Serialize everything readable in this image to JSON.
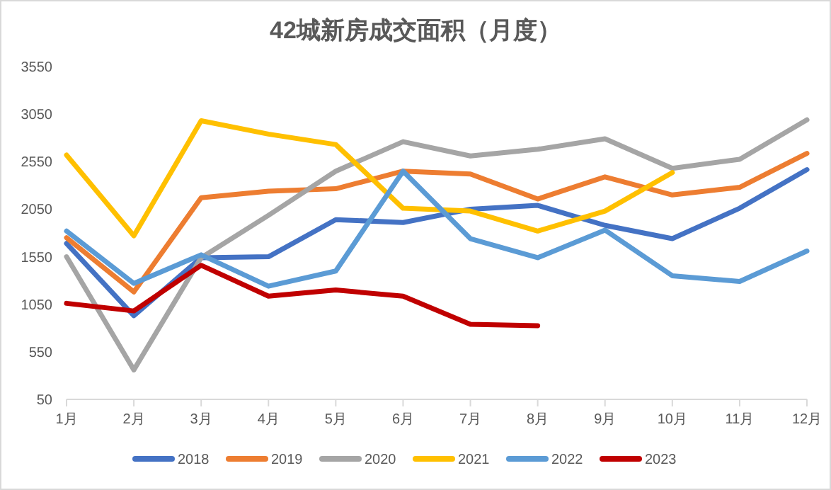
{
  "chart_data": {
    "type": "line",
    "title": "42城新房成交面积（月度）",
    "categories": [
      "1月",
      "2月",
      "3月",
      "4月",
      "5月",
      "6月",
      "7月",
      "8月",
      "9月",
      "10月",
      "11月",
      "12月"
    ],
    "ylim": [
      50,
      3550
    ],
    "yticks": [
      50,
      550,
      1050,
      1550,
      2050,
      2550,
      3050,
      3550
    ],
    "grid": false,
    "legend": "bottom",
    "marker": "none",
    "line_style": "solid",
    "series": [
      {
        "name": "2018",
        "color": "#4472c4",
        "values": [
          1690,
          930,
          1540,
          1550,
          1940,
          1910,
          2050,
          2090,
          1880,
          1740,
          2060,
          2466
        ]
      },
      {
        "name": "2019",
        "color": "#ed7d31",
        "values": [
          1750,
          1180,
          2170,
          2240,
          2265,
          2450,
          2420,
          2157,
          2390,
          2200,
          2280,
          2637
        ]
      },
      {
        "name": "2020",
        "color": "#a5a5a5",
        "values": [
          1550,
          360,
          1540,
          1985,
          2450,
          2760,
          2610,
          2680,
          2790,
          2480,
          2575,
          2990
        ]
      },
      {
        "name": "2021",
        "color": "#ffc000",
        "values": [
          2620,
          1770,
          2980,
          2840,
          2730,
          2060,
          2030,
          1820,
          2030,
          2435,
          null,
          null
        ]
      },
      {
        "name": "2022",
        "color": "#5b9bd5",
        "values": [
          1820,
          1270,
          1570,
          1240,
          1400,
          2450,
          1740,
          1540,
          1830,
          1350,
          1290,
          1610
        ]
      },
      {
        "name": "2023",
        "color": "#c00000",
        "values": [
          1060,
          980,
          1460,
          1135,
          1200,
          1135,
          840,
          825,
          null,
          null,
          null,
          null
        ]
      }
    ]
  }
}
